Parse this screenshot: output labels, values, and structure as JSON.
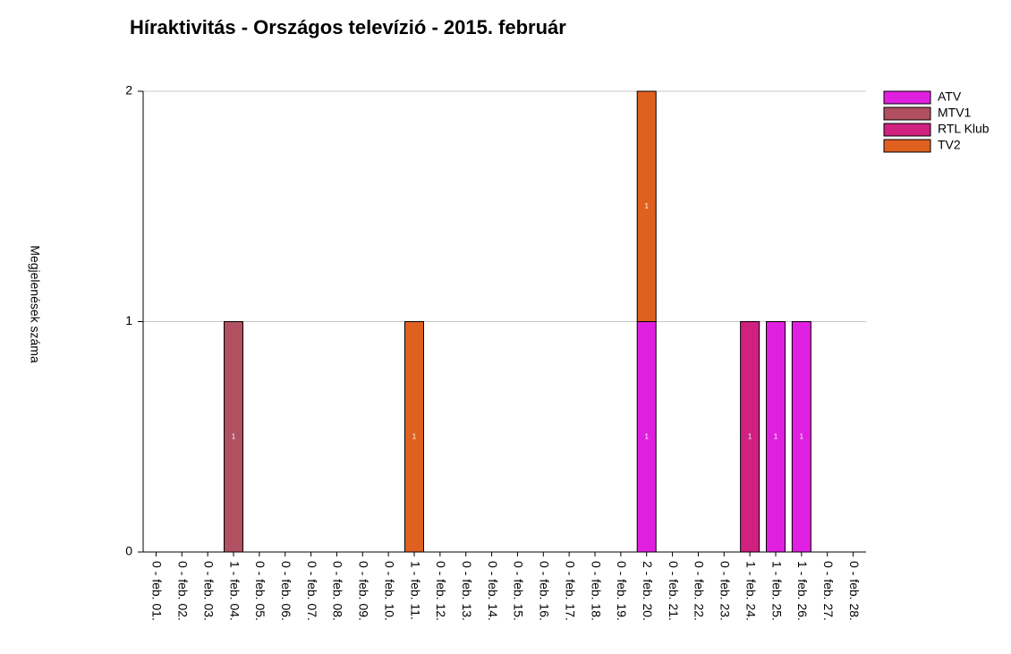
{
  "chart_data": {
    "type": "bar",
    "stacked": true,
    "title": "Híraktivitás - Országos televízió - 2015. február",
    "y_label": "Megjelenések száma",
    "categories": [
      "0 - feb. 01.",
      "0 - feb. 02.",
      "0 - feb. 03.",
      "1 - feb. 04.",
      "0 - feb. 05.",
      "0 - feb. 06.",
      "0 - feb. 07.",
      "0 - feb. 08.",
      "0 - feb. 09.",
      "0 - feb. 10.",
      "1 - feb. 11.",
      "0 - feb. 12.",
      "0 - feb. 13.",
      "0 - feb. 14.",
      "0 - feb. 15.",
      "0 - feb. 16.",
      "0 - feb. 17.",
      "0 - feb. 18.",
      "0 - feb. 19.",
      "2 - feb. 20.",
      "0 - feb. 21.",
      "0 - feb. 22.",
      "0 - feb. 23.",
      "1 - feb. 24.",
      "1 - feb. 25.",
      "1 - feb. 26.",
      "0 - feb. 27.",
      "0 - feb. 28."
    ],
    "series": [
      {
        "name": "ATV",
        "color": "#e020e0",
        "values": [
          0,
          0,
          0,
          0,
          0,
          0,
          0,
          0,
          0,
          0,
          0,
          0,
          0,
          0,
          0,
          0,
          0,
          0,
          0,
          1,
          0,
          0,
          0,
          0,
          1,
          1,
          0,
          0
        ]
      },
      {
        "name": "MTV1",
        "color": "#b05060",
        "values": [
          0,
          0,
          0,
          1,
          0,
          0,
          0,
          0,
          0,
          0,
          0,
          0,
          0,
          0,
          0,
          0,
          0,
          0,
          0,
          0,
          0,
          0,
          0,
          0,
          0,
          0,
          0,
          0
        ]
      },
      {
        "name": "RTL Klub",
        "color": "#d02080",
        "values": [
          0,
          0,
          0,
          0,
          0,
          0,
          0,
          0,
          0,
          0,
          0,
          0,
          0,
          0,
          0,
          0,
          0,
          0,
          0,
          0,
          0,
          0,
          0,
          1,
          0,
          0,
          0,
          0
        ]
      },
      {
        "name": "TV2",
        "color": "#e06020",
        "values": [
          0,
          0,
          0,
          0,
          0,
          0,
          0,
          0,
          0,
          0,
          1,
          0,
          0,
          0,
          0,
          0,
          0,
          0,
          0,
          1,
          0,
          0,
          0,
          0,
          0,
          0,
          0,
          0
        ]
      }
    ],
    "ylim": [
      0,
      2
    ],
    "yticks": [
      0,
      1,
      2
    ],
    "grid": true,
    "legend": "top-right"
  }
}
